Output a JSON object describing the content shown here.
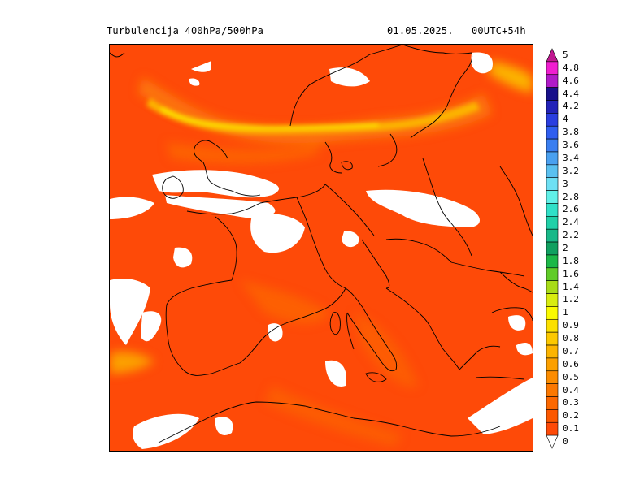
{
  "header": {
    "title_left": "Turbulencija 400hPa/500hPa",
    "title_right": "01.05.2025.   00UTC+54h"
  },
  "map": {
    "field": "turbulence",
    "base_color": "#fe4a08",
    "mask_color": "#ffffff",
    "coastline_color": "#000000"
  },
  "legend": {
    "levels": [
      {
        "label": "5",
        "color": "#c01890"
      },
      {
        "label": "4.8",
        "color": "#f01ed0"
      },
      {
        "label": "4.6",
        "color": "#b01ac8"
      },
      {
        "label": "4.4",
        "color": "#18108a"
      },
      {
        "label": "4.2",
        "color": "#2222b8"
      },
      {
        "label": "4",
        "color": "#2a3ee0"
      },
      {
        "label": "3.8",
        "color": "#2f5ef0"
      },
      {
        "label": "3.6",
        "color": "#3a7ef0"
      },
      {
        "label": "3.4",
        "color": "#4aa0f0"
      },
      {
        "label": "3.2",
        "color": "#5ac0f0"
      },
      {
        "label": "3",
        "color": "#6ee0f4"
      },
      {
        "label": "2.8",
        "color": "#60f0e8"
      },
      {
        "label": "2.6",
        "color": "#30e0c8"
      },
      {
        "label": "2.4",
        "color": "#20d0a8"
      },
      {
        "label": "2.2",
        "color": "#18b888"
      },
      {
        "label": "2",
        "color": "#10a060"
      },
      {
        "label": "1.8",
        "color": "#1cb848"
      },
      {
        "label": "1.6",
        "color": "#60cc28"
      },
      {
        "label": "1.4",
        "color": "#a8dc18"
      },
      {
        "label": "1.2",
        "color": "#d8ec10"
      },
      {
        "label": "1",
        "color": "#fafa00"
      },
      {
        "label": "0.9",
        "color": "#fce000"
      },
      {
        "label": "0.8",
        "color": "#fcc800"
      },
      {
        "label": "0.7",
        "color": "#fcb400"
      },
      {
        "label": "0.6",
        "color": "#fca000"
      },
      {
        "label": "0.5",
        "color": "#fc8c00"
      },
      {
        "label": "0.4",
        "color": "#fc7800"
      },
      {
        "label": "0.3",
        "color": "#fc6800"
      },
      {
        "label": "0.2",
        "color": "#fc5800"
      },
      {
        "label": "0.1",
        "color": "#fe4a08"
      },
      {
        "label": "0",
        "color": "#ffffff"
      }
    ]
  }
}
